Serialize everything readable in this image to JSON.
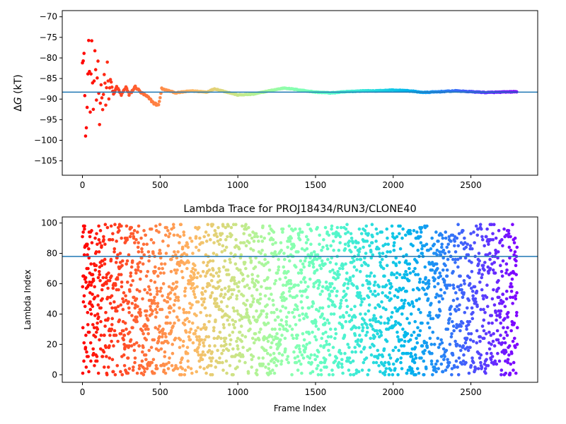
{
  "chart_data": [
    {
      "type": "scatter",
      "title": "",
      "xlabel": "",
      "ylabel": "ΔG (kT)",
      "ylabel_parts": {
        "delta": "Δ",
        "var": "G",
        "unit": " (kT)"
      },
      "xlim": [
        -130,
        2930
      ],
      "ylim": [
        -108.5,
        -68.5
      ],
      "xticks": [
        0,
        500,
        1000,
        1500,
        2000,
        2500
      ],
      "yticks": [
        -105,
        -100,
        -95,
        -90,
        -85,
        -80,
        -75,
        -70
      ],
      "xtick_labels": [
        "0",
        "500",
        "1000",
        "1500",
        "2000",
        "2500"
      ],
      "ytick_labels": [
        "−105",
        "−100",
        "−95",
        "−90",
        "−85",
        "−80",
        "−75",
        "−70"
      ],
      "hline": -88.3,
      "hline_color": "#1f77b4",
      "colormap": "rainbow",
      "n_frames": 2800,
      "control_points": [
        [
          0,
          -80
        ],
        [
          10,
          -79
        ],
        [
          20,
          -100
        ],
        [
          30,
          -92
        ],
        [
          40,
          -76
        ],
        [
          50,
          -92
        ],
        [
          60,
          -77
        ],
        [
          70,
          -93
        ],
        [
          80,
          -78
        ],
        [
          90,
          -90
        ],
        [
          100,
          -82
        ],
        [
          110,
          -96
        ],
        [
          120,
          -86
        ],
        [
          130,
          -93
        ],
        [
          140,
          -83
        ],
        [
          150,
          -91
        ],
        [
          160,
          -81
        ],
        [
          170,
          -90
        ],
        [
          180,
          -85
        ],
        [
          200,
          -89
        ],
        [
          220,
          -87
        ],
        [
          250,
          -89
        ],
        [
          280,
          -87
        ],
        [
          300,
          -89
        ],
        [
          340,
          -87
        ],
        [
          380,
          -88.5
        ],
        [
          420,
          -89.5
        ],
        [
          460,
          -91
        ],
        [
          490,
          -91.5
        ],
        [
          510,
          -87.5
        ],
        [
          560,
          -88
        ],
        [
          600,
          -88.5
        ],
        [
          700,
          -88
        ],
        [
          800,
          -88.3
        ],
        [
          850,
          -87.5
        ],
        [
          900,
          -88
        ],
        [
          1000,
          -89
        ],
        [
          1100,
          -88.8
        ],
        [
          1200,
          -88
        ],
        [
          1300,
          -87.3
        ],
        [
          1400,
          -87.8
        ],
        [
          1500,
          -88.3
        ],
        [
          1600,
          -88.5
        ],
        [
          1700,
          -88.2
        ],
        [
          1800,
          -88
        ],
        [
          1900,
          -88
        ],
        [
          2000,
          -87.8
        ],
        [
          2100,
          -88
        ],
        [
          2200,
          -88.4
        ],
        [
          2300,
          -88.2
        ],
        [
          2400,
          -88
        ],
        [
          2500,
          -88.2
        ],
        [
          2600,
          -88.4
        ],
        [
          2700,
          -88.3
        ],
        [
          2800,
          -88.2
        ]
      ]
    },
    {
      "type": "scatter",
      "title": "Lambda Trace for PROJ18434/RUN3/CLONE40",
      "xlabel": "Frame Index",
      "ylabel": "Lambda Index",
      "xlim": [
        -130,
        2930
      ],
      "ylim": [
        -5,
        104
      ],
      "xticks": [
        0,
        500,
        1000,
        1500,
        2000,
        2500
      ],
      "yticks": [
        0,
        20,
        40,
        60,
        80,
        100
      ],
      "xtick_labels": [
        "0",
        "500",
        "1000",
        "1500",
        "2000",
        "2500"
      ],
      "ytick_labels": [
        "0",
        "20",
        "40",
        "60",
        "80",
        "100"
      ],
      "hline": 78,
      "hline_color": "#1f77b4",
      "colormap": "rainbow",
      "n_frames": 2800,
      "lambda_range": [
        0,
        99
      ]
    }
  ]
}
